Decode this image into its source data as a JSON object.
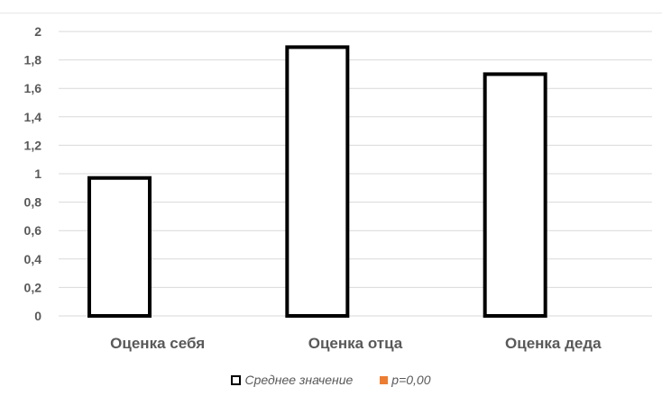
{
  "chart_data": {
    "type": "bar",
    "categories": [
      "Оценка себя",
      "Оценка отца",
      "Оценка деда"
    ],
    "series": [
      {
        "name": "Среднее значение",
        "values": [
          0.97,
          1.89,
          1.7
        ],
        "fill": "#ffffff",
        "stroke": "#000000"
      },
      {
        "name": "p=0,00",
        "values": [
          0,
          0,
          0
        ],
        "fill": "#ed7d31"
      }
    ],
    "y_ticks": [
      "0",
      "0,2",
      "0,4",
      "0,6",
      "0,8",
      "1",
      "1,2",
      "1,4",
      "1,6",
      "1,8",
      "2"
    ],
    "ylim": [
      0,
      2
    ],
    "grid": true,
    "legend_position": "bottom"
  },
  "colors": {
    "gridline": "#d9d9d9",
    "axis_text": "#595959",
    "category_text": "#595959",
    "bar_stroke": "#000000"
  }
}
